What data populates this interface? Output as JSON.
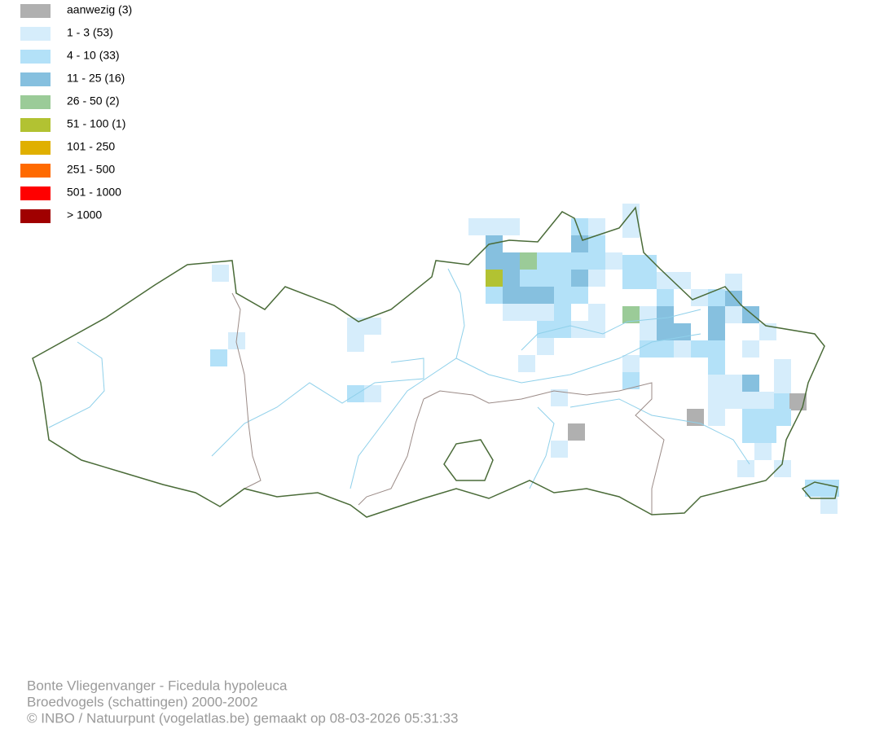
{
  "legend": [
    {
      "label": "aanwezig (3)",
      "color": "#b0b0b0"
    },
    {
      "label": "1 - 3 (53)",
      "color": "#d6edfb"
    },
    {
      "label": "4 - 10 (33)",
      "color": "#b3e1f8"
    },
    {
      "label": "11 - 25 (16)",
      "color": "#86c0df"
    },
    {
      "label": "26 - 50 (2)",
      "color": "#9bcb98"
    },
    {
      "label": "51 - 100 (1)",
      "color": "#b2c232"
    },
    {
      "label": "101 - 250",
      "color": "#e0b000"
    },
    {
      "label": "251 - 500",
      "color": "#ff6a00"
    },
    {
      "label": "501 - 1000",
      "color": "#ff0000"
    },
    {
      "label": "> 1000",
      "color": "#a00000"
    }
  ],
  "footer": {
    "species": "Bonte Vliegenvanger - Ficedula hypoleuca",
    "dataset": "Broedvogels (schattingen) 2000-2002",
    "credit": "© INBO / Natuurpunt (vogelatlas.be) gemaakt op 08-03-2026 05:31:33"
  }
}
